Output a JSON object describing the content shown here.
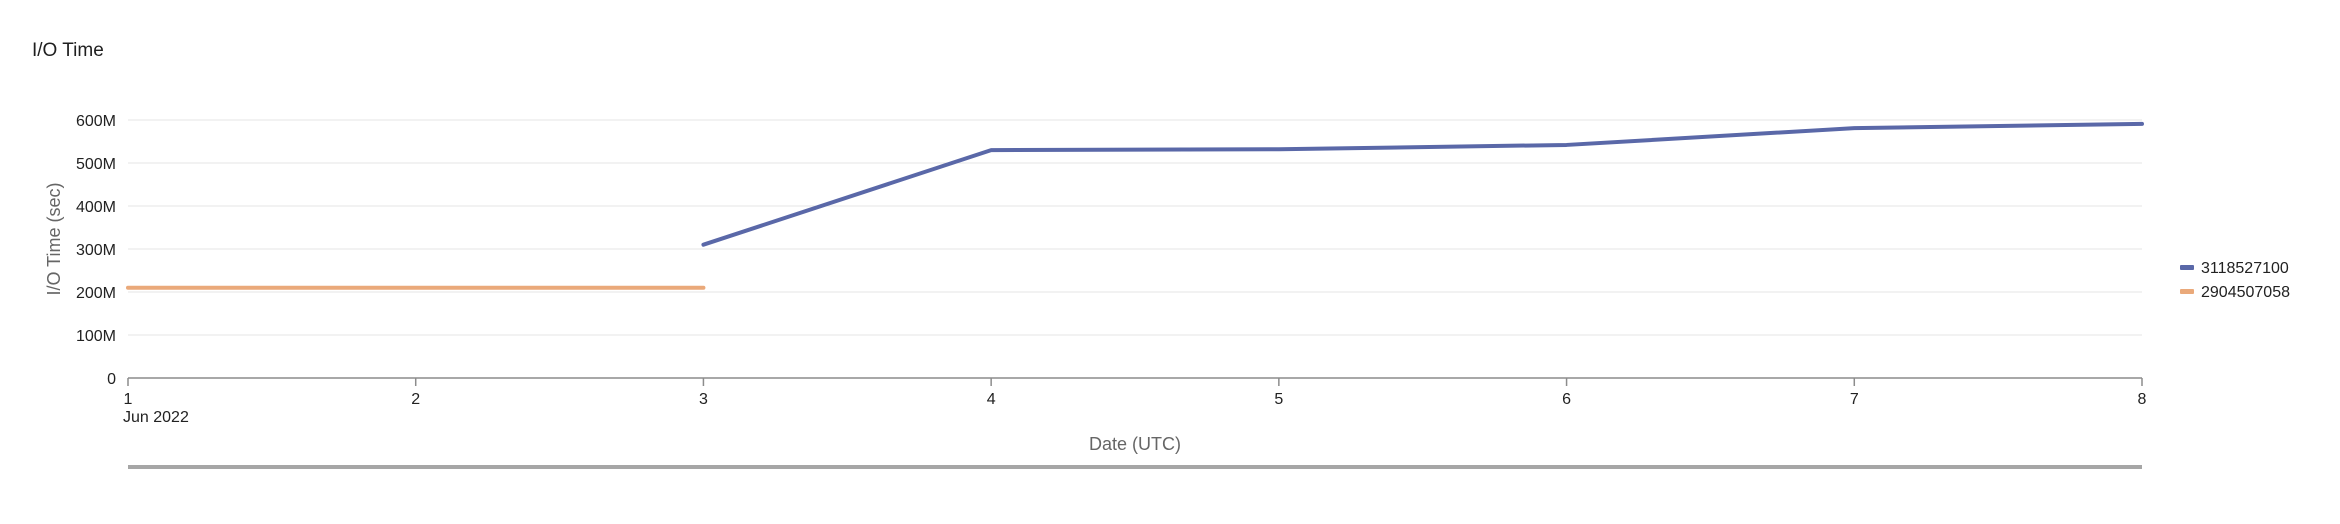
{
  "chart_data": {
    "type": "line",
    "title": "I/O Time",
    "xlabel": "Date (UTC)",
    "ylabel": "I/O Time (sec)",
    "x_ticks": [
      "1",
      "2",
      "3",
      "4",
      "5",
      "6",
      "7",
      "8"
    ],
    "x_sublabel": "Jun 2022",
    "y_ticks": [
      "0",
      "100M",
      "200M",
      "300M",
      "400M",
      "500M",
      "600M"
    ],
    "ylim": [
      0,
      600000000
    ],
    "xlim": [
      1,
      8
    ],
    "grid": true,
    "legend_position": "right",
    "series": [
      {
        "name": "3118527100",
        "color": "#5a68a8",
        "x": [
          3,
          4,
          5,
          6,
          7,
          8
        ],
        "y": [
          310000000,
          530000000,
          532000000,
          542000000,
          581000000,
          591000000
        ]
      },
      {
        "name": "2904507058",
        "color": "#eaa97a",
        "x": [
          1,
          2,
          3
        ],
        "y": [
          210000000,
          210000000,
          210000000
        ]
      }
    ]
  }
}
